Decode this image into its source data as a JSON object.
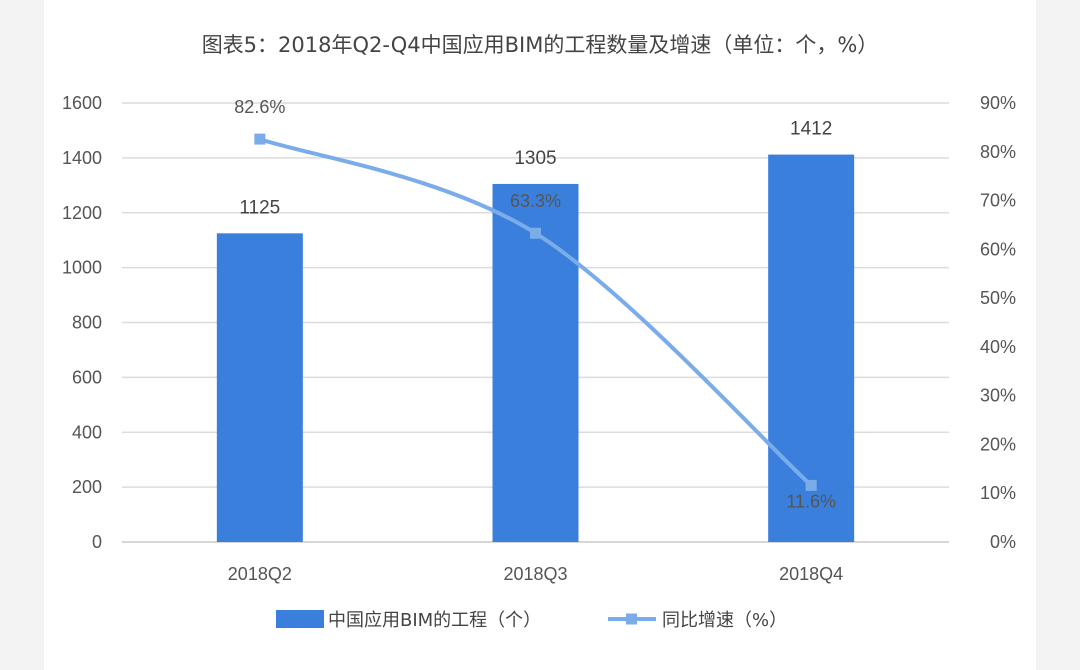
{
  "chart_data": {
    "type": "bar",
    "title": "图表5：2018年Q2-Q4中国应用BIM的工程数量及增速（单位：个，%）",
    "categories": [
      "2018Q2",
      "2018Q3",
      "2018Q4"
    ],
    "series": [
      {
        "name": "中国应用BIM的工程（个）",
        "type": "bar",
        "axis": "left",
        "values": [
          1125,
          1305,
          1412
        ],
        "labels": [
          "1125",
          "1305",
          "1412"
        ],
        "color": "#3a7fdc"
      },
      {
        "name": "同比增速（%）",
        "type": "line",
        "axis": "right",
        "values": [
          82.6,
          63.3,
          11.6
        ],
        "labels": [
          "82.6%",
          "63.3%",
          "11.6%"
        ],
        "color": "#7aacea"
      }
    ],
    "y_left": {
      "ylim": [
        0,
        1600
      ],
      "ticks": [
        "0",
        "200",
        "400",
        "600",
        "800",
        "1000",
        "1200",
        "1400",
        "1600"
      ]
    },
    "y_right": {
      "ylim": [
        0,
        90
      ],
      "ticks": [
        "0%",
        "10%",
        "20%",
        "30%",
        "40%",
        "50%",
        "60%",
        "70%",
        "80%",
        "90%"
      ]
    },
    "grid": true,
    "legend": "bottom"
  }
}
